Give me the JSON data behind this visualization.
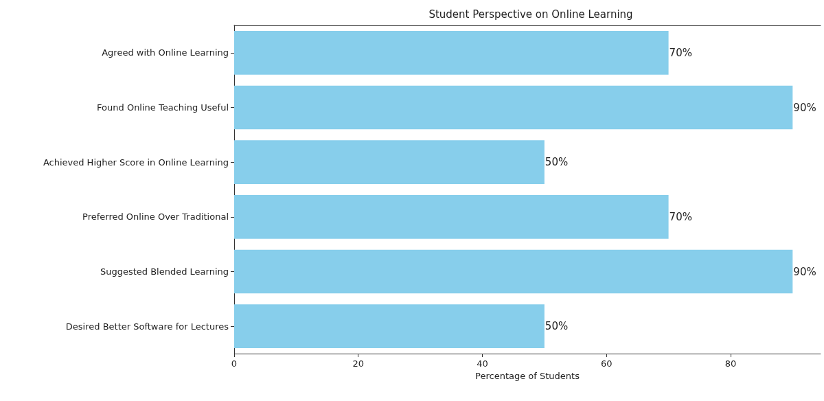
{
  "chart_data": {
    "type": "bar",
    "orientation": "horizontal",
    "title": "Student Perspective on Online Learning",
    "xlabel": "Percentage of Students",
    "categories": [
      "Agreed with Online Learning",
      "Found Online Teaching Useful",
      "Achieved Higher Score in Online Learning",
      "Preferred Online Over Traditional",
      "Suggested Blended Learning",
      "Desired Better Software for Lectures"
    ],
    "values": [
      70,
      90,
      50,
      70,
      90,
      50
    ],
    "value_labels": [
      "70%",
      "90%",
      "50%",
      "70%",
      "90%",
      "50%"
    ],
    "color": "#87ceeb",
    "xlim": [
      0,
      94.5
    ],
    "xticks": [
      0,
      20,
      40,
      60,
      80
    ],
    "grid": false
  }
}
